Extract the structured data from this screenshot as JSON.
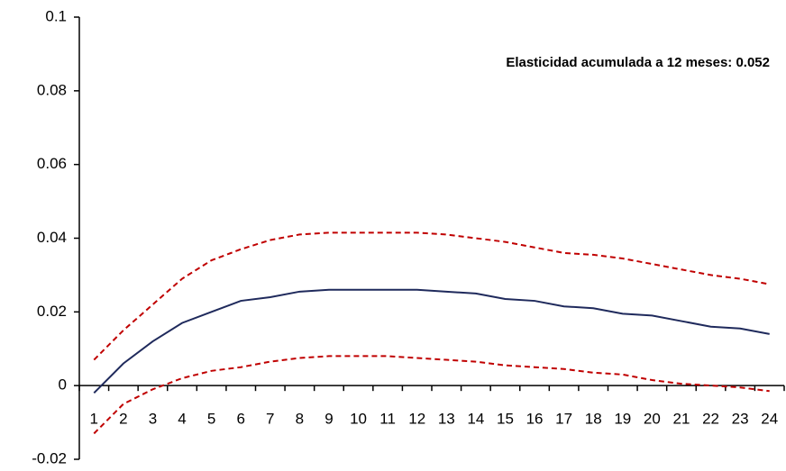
{
  "chart_data": {
    "type": "line",
    "annotation": "Elasticidad  acumulada a 12 meses: 0.052",
    "categories": [
      "1",
      "2",
      "3",
      "4",
      "5",
      "6",
      "7",
      "8",
      "9",
      "10",
      "11",
      "12",
      "13",
      "14",
      "15",
      "16",
      "17",
      "18",
      "19",
      "20",
      "21",
      "22",
      "23",
      "24"
    ],
    "series": [
      {
        "color": "#1f2a5c",
        "style": "solid",
        "values": [
          -0.002,
          0.006,
          0.012,
          0.017,
          0.02,
          0.023,
          0.024,
          0.0255,
          0.026,
          0.026,
          0.026,
          0.026,
          0.0255,
          0.025,
          0.0235,
          0.023,
          0.0215,
          0.021,
          0.0195,
          0.019,
          0.0175,
          0.016,
          0.0155,
          0.014
        ]
      },
      {
        "color": "#c00000",
        "style": "dashed",
        "values": [
          0.007,
          0.015,
          0.022,
          0.029,
          0.034,
          0.037,
          0.0395,
          0.041,
          0.0415,
          0.0415,
          0.0415,
          0.0415,
          0.041,
          0.04,
          0.039,
          0.0375,
          0.036,
          0.0355,
          0.0345,
          0.033,
          0.0315,
          0.03,
          0.029,
          0.0275
        ]
      },
      {
        "color": "#c00000",
        "style": "dashed",
        "values": [
          -0.013,
          -0.005,
          -0.001,
          0.002,
          0.004,
          0.005,
          0.0065,
          0.0075,
          0.008,
          0.008,
          0.008,
          0.0075,
          0.007,
          0.0065,
          0.0055,
          0.005,
          0.0045,
          0.0035,
          0.003,
          0.0015,
          0.0005,
          0,
          -0.0005,
          -0.0015
        ]
      }
    ],
    "ylim": [
      -0.02,
      0.1
    ],
    "yticks": [
      -0.02,
      0,
      0.02,
      0.04,
      0.06,
      0.08,
      0.1
    ]
  }
}
